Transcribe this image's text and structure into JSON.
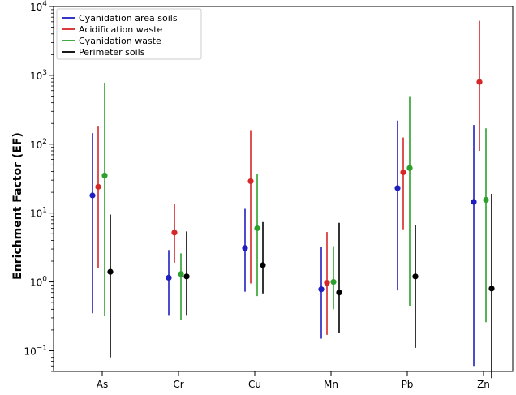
{
  "chart_data": {
    "type": "scatter",
    "title": "",
    "xlabel": "",
    "ylabel": "Enrichment Factor (EF)",
    "yscale": "log",
    "ylim": [
      0.05,
      10000
    ],
    "grid": false,
    "legend_position": "top-left",
    "categories": [
      "As",
      "Cr",
      "Cu",
      "Mn",
      "Pb",
      "Zn"
    ],
    "y_ticks": [
      {
        "value": 0.1,
        "mant": "10",
        "exp": "−1"
      },
      {
        "value": 1,
        "mant": "10",
        "exp": "0"
      },
      {
        "value": 10,
        "mant": "10",
        "exp": "1"
      },
      {
        "value": 100,
        "mant": "10",
        "exp": "2"
      },
      {
        "value": 1000,
        "mant": "10",
        "exp": "3"
      },
      {
        "value": 10000,
        "mant": "10",
        "exp": "4"
      }
    ],
    "series": [
      {
        "name": "Cyanidation area soils",
        "color": "#1f1fbf",
        "points": [
          {
            "category": "As",
            "value": 18,
            "low": 0.35,
            "high": 145
          },
          {
            "category": "Cr",
            "value": 1.15,
            "low": 0.33,
            "high": 2.9
          },
          {
            "category": "Cu",
            "value": 3.1,
            "low": 0.72,
            "high": 11.5
          },
          {
            "category": "Mn",
            "value": 0.78,
            "low": 0.15,
            "high": 3.2
          },
          {
            "category": "Pb",
            "value": 23,
            "low": 0.75,
            "high": 220
          },
          {
            "category": "Zn",
            "value": 14.5,
            "low": 0.06,
            "high": 190
          }
        ]
      },
      {
        "name": "Acidification waste",
        "color": "#d62728",
        "points": [
          {
            "category": "As",
            "value": 24,
            "low": 1.6,
            "high": 185
          },
          {
            "category": "Cr",
            "value": 5.2,
            "low": 1.9,
            "high": 13.5
          },
          {
            "category": "Cu",
            "value": 29,
            "low": 0.95,
            "high": 160
          },
          {
            "category": "Mn",
            "value": 0.97,
            "low": 0.17,
            "high": 5.3
          },
          {
            "category": "Pb",
            "value": 39,
            "low": 5.8,
            "high": 125
          },
          {
            "category": "Zn",
            "value": 800,
            "low": 80,
            "high": 6200
          }
        ]
      },
      {
        "name": "Cyanidation waste",
        "color": "#2ca02c",
        "points": [
          {
            "category": "As",
            "value": 35,
            "low": 0.32,
            "high": 780
          },
          {
            "category": "Cr",
            "value": 1.3,
            "low": 0.28,
            "high": 2.6
          },
          {
            "category": "Cu",
            "value": 6,
            "low": 0.62,
            "high": 37
          },
          {
            "category": "Mn",
            "value": 1,
            "low": 0.4,
            "high": 3.3
          },
          {
            "category": "Pb",
            "value": 45,
            "low": 0.45,
            "high": 500
          },
          {
            "category": "Zn",
            "value": 15.5,
            "low": 0.26,
            "high": 170
          }
        ]
      },
      {
        "name": "Perimeter soils",
        "color": "#000000",
        "points": [
          {
            "category": "As",
            "value": 1.4,
            "low": 0.08,
            "high": 9.5
          },
          {
            "category": "Cr",
            "value": 1.2,
            "low": 0.33,
            "high": 5.4
          },
          {
            "category": "Cu",
            "value": 1.75,
            "low": 0.68,
            "high": 7.4
          },
          {
            "category": "Mn",
            "value": 0.7,
            "low": 0.18,
            "high": 7.2
          },
          {
            "category": "Pb",
            "value": 1.2,
            "low": 0.11,
            "high": 6.6
          },
          {
            "category": "Zn",
            "value": 0.8,
            "low": 0.04,
            "high": 19
          }
        ]
      }
    ]
  }
}
